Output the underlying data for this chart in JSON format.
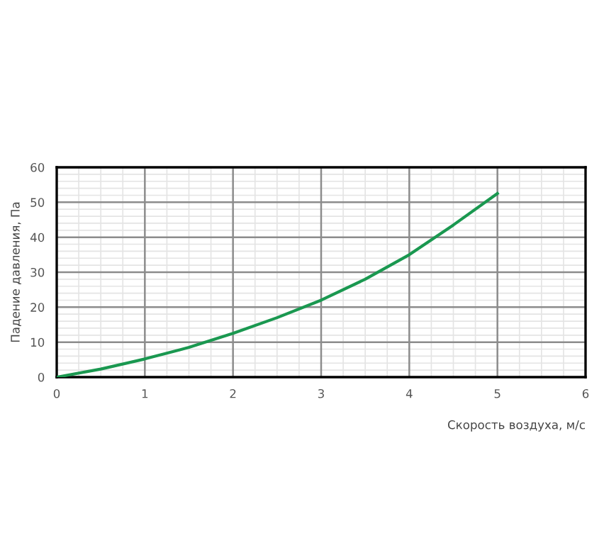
{
  "chart_data": {
    "type": "line",
    "xlabel": "Скорость воздуха, м/с",
    "ylabel": "Падение давления, Па",
    "x": [
      0,
      0.5,
      1,
      1.5,
      2,
      2.5,
      3,
      3.5,
      4,
      4.5,
      5
    ],
    "series": [
      {
        "color": "#1a9850",
        "values": [
          0,
          2.3,
          5.2,
          8.5,
          12.5,
          17,
          22,
          28,
          35,
          43.5,
          52.5
        ]
      }
    ],
    "xlim": [
      0,
      6
    ],
    "xticks": [
      0,
      1,
      2,
      3,
      4,
      5,
      6
    ],
    "ylim": [
      0,
      60
    ],
    "yticks": [
      0,
      10,
      20,
      30,
      40,
      50,
      60
    ],
    "grid": true,
    "marker": "none",
    "line_style": "solid"
  }
}
